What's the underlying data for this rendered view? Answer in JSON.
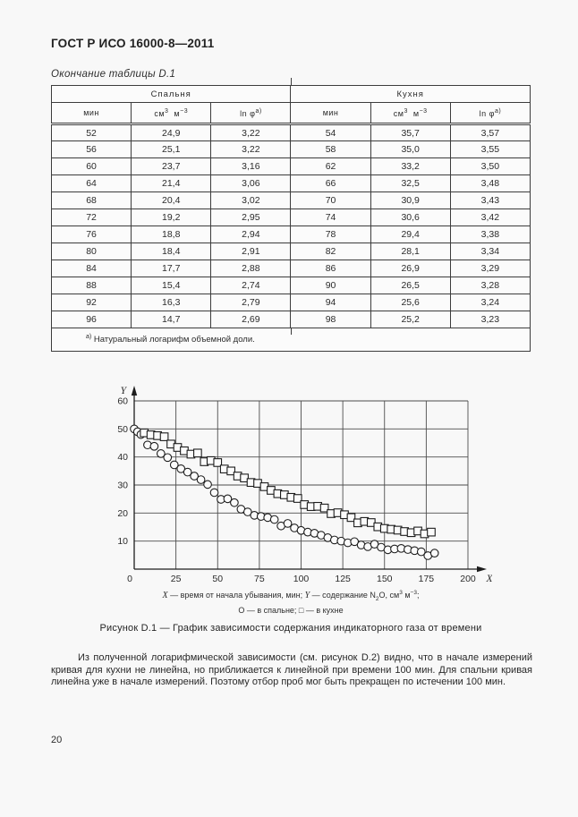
{
  "page": {
    "number": "20"
  },
  "header": {
    "title": "ГОСТ Р ИСО 16000-8—2011"
  },
  "table": {
    "caption": "Окончание таблицы D.1",
    "groups": [
      {
        "label": "Спальня"
      },
      {
        "label": "Кухня"
      }
    ],
    "columns": {
      "time": "мин",
      "conc_base1": "см",
      "conc_sup1": "3",
      "conc_base2": "м",
      "conc_sup2": "−3",
      "ln_base": "ln φ",
      "ln_sup": "а)"
    },
    "rows": [
      [
        "52",
        "24,9",
        "3,22",
        "54",
        "35,7",
        "3,57"
      ],
      [
        "56",
        "25,1",
        "3,22",
        "58",
        "35,0",
        "3,55"
      ],
      [
        "60",
        "23,7",
        "3,16",
        "62",
        "33,2",
        "3,50"
      ],
      [
        "64",
        "21,4",
        "3,06",
        "66",
        "32,5",
        "3,48"
      ],
      [
        "68",
        "20,4",
        "3,02",
        "70",
        "30,9",
        "3,43"
      ],
      [
        "72",
        "19,2",
        "2,95",
        "74",
        "30,6",
        "3,42"
      ],
      [
        "76",
        "18,8",
        "2,94",
        "78",
        "29,4",
        "3,38"
      ],
      [
        "80",
        "18,4",
        "2,91",
        "82",
        "28,1",
        "3,34"
      ],
      [
        "84",
        "17,7",
        "2,88",
        "86",
        "26,9",
        "3,29"
      ],
      [
        "88",
        "15,4",
        "2,74",
        "90",
        "26,5",
        "3,28"
      ],
      [
        "92",
        "16,3",
        "2,79",
        "94",
        "25,6",
        "3,24"
      ],
      [
        "96",
        "14,7",
        "2,69",
        "98",
        "25,2",
        "3,23"
      ]
    ],
    "footnote_marker": "а)",
    "footnote_text": " Натуральный логарифм объемной доли."
  },
  "chart_data": {
    "type": "scatter",
    "title": "",
    "xlabel": "X",
    "ylabel": "Y",
    "xlim": [
      0,
      200
    ],
    "ylim": [
      0,
      60
    ],
    "xticks": [
      0,
      25,
      50,
      75,
      100,
      125,
      150,
      175,
      200
    ],
    "yticks": [
      10,
      20,
      30,
      40,
      50,
      60
    ],
    "grid": true,
    "series": [
      {
        "name": "в спальне",
        "marker": "circle",
        "x": [
          0,
          2,
          4,
          8,
          12,
          16,
          20,
          24,
          28,
          32,
          36,
          40,
          44,
          48,
          52,
          56,
          60,
          64,
          68,
          72,
          76,
          80,
          84,
          88,
          92,
          96,
          100,
          104,
          108,
          112,
          116,
          120,
          124,
          128,
          132,
          136,
          140,
          144,
          148,
          152,
          156,
          160,
          164,
          168,
          172,
          176,
          180
        ],
        "y": [
          50,
          49,
          48,
          44.3,
          43.8,
          41.2,
          39.8,
          37.2,
          35.8,
          34.6,
          33.2,
          31.9,
          30.2,
          27.3,
          24.9,
          25.1,
          23.7,
          21.4,
          20.4,
          19.2,
          18.8,
          18.4,
          17.7,
          15.4,
          16.3,
          14.7,
          13.8,
          13.2,
          12.8,
          12.1,
          11.2,
          10.4,
          10.0,
          9.4,
          9.8,
          8.6,
          8.0,
          8.9,
          7.8,
          6.9,
          7.2,
          7.4,
          7.0,
          6.6,
          6.2,
          4.8,
          5.7
        ]
      },
      {
        "name": "в кухне",
        "marker": "square",
        "x": [
          6,
          10,
          14,
          18,
          22,
          26,
          30,
          34,
          38,
          42,
          46,
          50,
          54,
          58,
          62,
          66,
          70,
          74,
          78,
          82,
          86,
          90,
          94,
          98,
          102,
          106,
          110,
          114,
          118,
          122,
          126,
          130,
          134,
          138,
          142,
          146,
          150,
          154,
          158,
          162,
          166,
          170,
          174,
          178
        ],
        "y": [
          48.6,
          47.9,
          47.6,
          47.2,
          44.6,
          43.4,
          42.2,
          41.0,
          41.4,
          38.3,
          38.7,
          38.0,
          35.7,
          35.0,
          33.2,
          32.5,
          30.9,
          30.6,
          29.4,
          28.1,
          26.9,
          26.5,
          25.6,
          25.2,
          23.0,
          22.3,
          22.4,
          21.8,
          19.8,
          20.1,
          19.4,
          18.4,
          16.5,
          17.0,
          16.6,
          15.1,
          14.5,
          14.2,
          13.9,
          13.4,
          13.0,
          13.6,
          12.6,
          13.2
        ]
      }
    ]
  },
  "figure": {
    "legend": {
      "i1": "X",
      "p1": " — время от начала убывания, мин; ",
      "i2": "Y",
      "p2": " — содержание N",
      "sub": "2",
      "p3": "O, см",
      "sup1": "3",
      "p4": " м",
      "sup2": "−3",
      "p5": ";",
      "line2": "О — в спальне; □ — в кухне"
    },
    "caption": "Рисунок D.1 — График зависимости содержания индикаторного газа от времени"
  },
  "body_text": "Из полученной логарифмической зависимости (см. рисунок D.2) видно, что в начале измерений кривая для кухни не линейна, но приближается к линейной при времени 100 мин. Для спальни кривая линейна уже в начале измерений. Поэтому отбор проб мог быть прекращен по истечении 100 мин."
}
